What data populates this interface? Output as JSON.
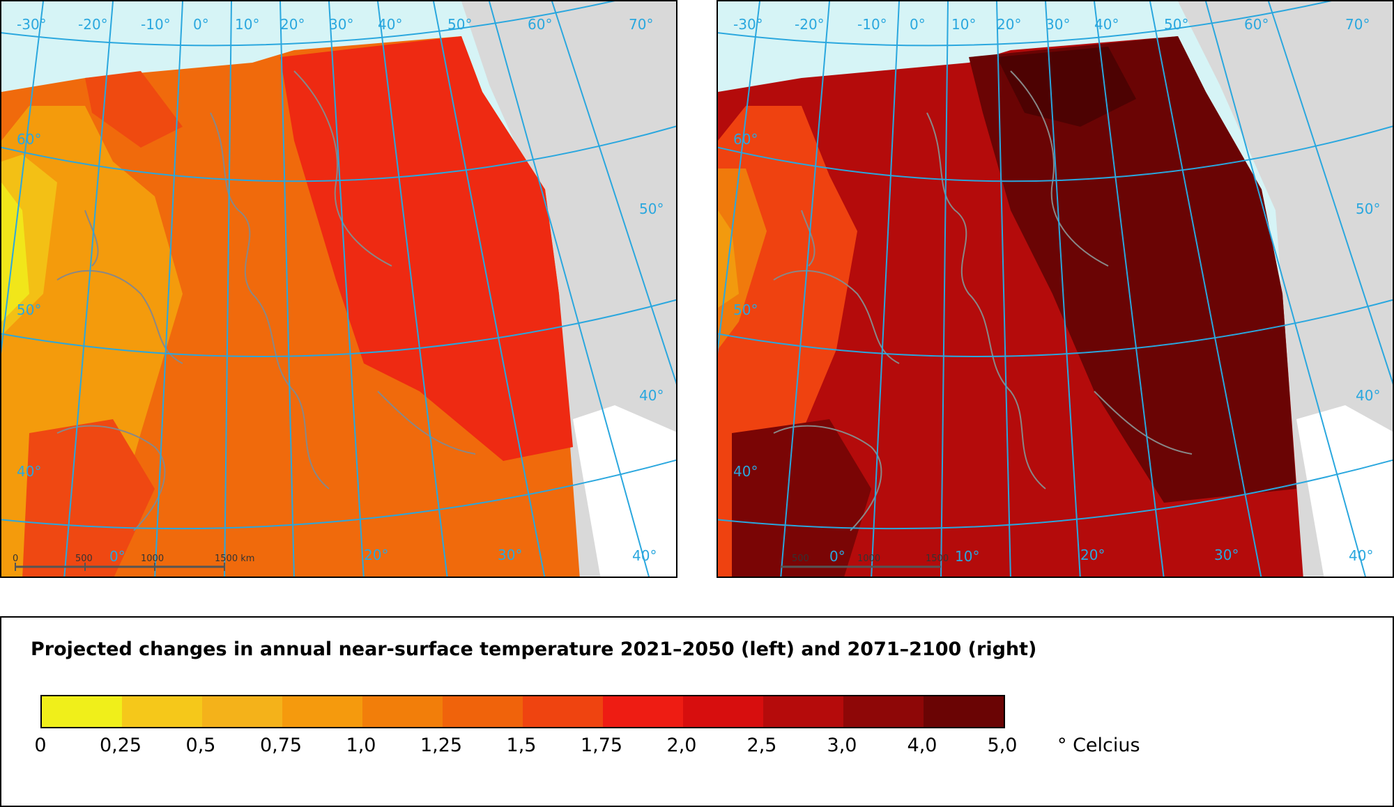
{
  "maps": {
    "left": {
      "lon_labels": [
        "-30°",
        "-20°",
        "-10°",
        "0°",
        "10°",
        "20°",
        "30°",
        "40°",
        "50°",
        "60°",
        "70°"
      ],
      "lat_labels": [
        "60°",
        "50°",
        "40°"
      ],
      "right_edge_labels": [
        "50°",
        "40°",
        "40°"
      ],
      "bottom_lon_labels": [
        "0°",
        "20°",
        "30°"
      ],
      "scale_bar": {
        "labels": [
          "0",
          "500",
          "1000",
          "1500 km"
        ]
      }
    },
    "right": {
      "lon_labels": [
        "-30°",
        "-20°",
        "-10°",
        "0°",
        "10°",
        "20°",
        "30°",
        "40°",
        "50°",
        "60°",
        "70°"
      ],
      "lat_labels": [
        "60°",
        "50°",
        "40°"
      ],
      "right_edge_labels": [
        "50°",
        "40°",
        "40°"
      ],
      "bottom_lon_labels": [
        "0°",
        "10°",
        "20°",
        "30°"
      ],
      "scale_bar": {
        "labels": [
          "500",
          "1000",
          "1500"
        ]
      }
    }
  },
  "legend": {
    "title": "Projected changes in annual near-surface temperature 2021–2050 (left) and 2071–2100 (right)",
    "unit": "° Celcius",
    "ticks": [
      "0",
      "0,25",
      "0,5",
      "0,75",
      "1,0",
      "1,25",
      "1,5",
      "1,75",
      "2,0",
      "2,5",
      "3,0",
      "4,0",
      "5,0"
    ],
    "colors": [
      "#f0ef1a",
      "#f5c81a",
      "#f4b21a",
      "#f59a0d",
      "#f27e0a",
      "#f0630b",
      "#ef4410",
      "#ee1c13",
      "#d70e0e",
      "#b50b0b",
      "#8e0707",
      "#6a0404",
      "#4d0202"
    ]
  }
}
